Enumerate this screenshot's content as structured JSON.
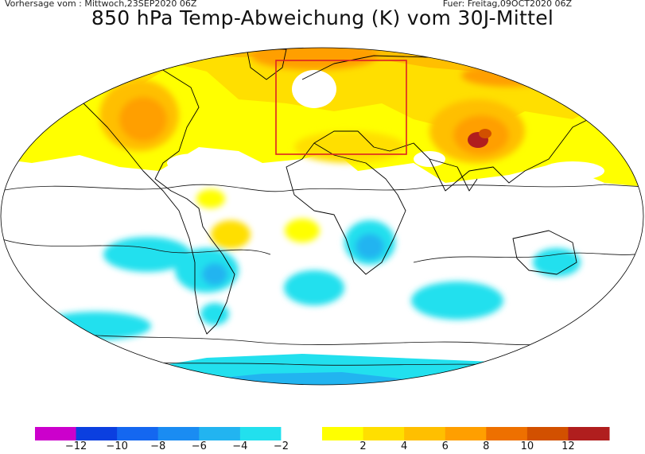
{
  "header": {
    "run_info": "Vorhersage vom : Mittwoch,23SEP2020 06Z",
    "valid_info": "Fuer: Freitag,09OCT2020 06Z",
    "title": "850 hPa Temp-Abweichung (K) vom 30J-Mittel"
  },
  "legend": {
    "swatch_colors": [
      "#cc00cc",
      "#0b3fe0",
      "#1467f0",
      "#1a8cf2",
      "#22b4f0",
      "#22e0ee",
      "#ffffff",
      "#ffff00",
      "#ffdf00",
      "#ffbf00",
      "#ff9f00",
      "#ee7000",
      "#d25000",
      "#b01e1e"
    ],
    "tick_labels": [
      "−12",
      "−10",
      "−8",
      "−6",
      "−4",
      "−2",
      "2",
      "4",
      "6",
      "8",
      "10",
      "12"
    ]
  },
  "colors": {
    "europe_highlight_box": "#dd2222",
    "land_contours": "#000000"
  }
}
